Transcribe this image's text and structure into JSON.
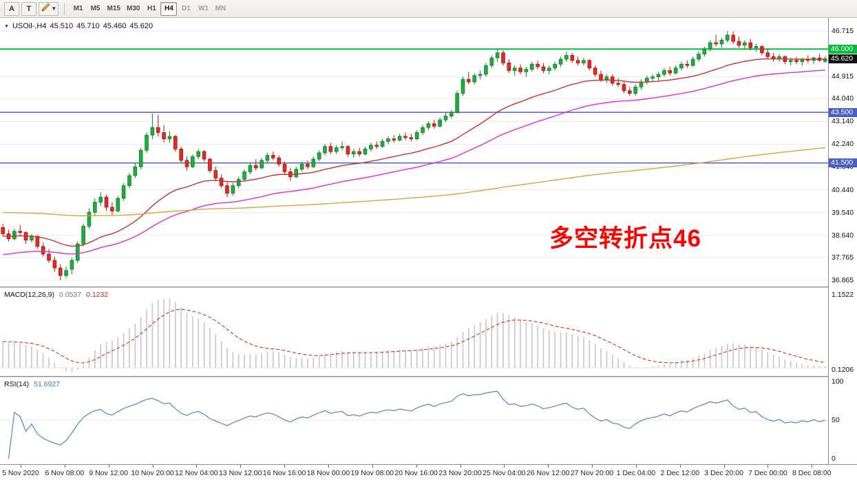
{
  "toolbar": {
    "tool_a_label": "A",
    "tool_t_label": "T",
    "timeframes": [
      "M1",
      "M5",
      "M15",
      "M30",
      "H1",
      "H4",
      "D1",
      "W1",
      "MN"
    ],
    "active_timeframe": "H4",
    "muted_timeframes": [
      "D1",
      "W1",
      "MN"
    ]
  },
  "caption": {
    "arrow": "▼",
    "symbol_period": "USOil-,H4",
    "open": "45.510",
    "high": "45.710",
    "low": "45.460",
    "close": "45.620"
  },
  "chart": {
    "annotation": {
      "text": "多空转折点46",
      "color": "#ff0000"
    },
    "colors": {
      "up": "#1fae3e",
      "up_stroke": "#0f7e2a",
      "down": "#e02b22",
      "down_stroke": "#a9170f",
      "grid": "#e9e9e9"
    },
    "levels": [
      {
        "label": "46.000",
        "value": 46.0,
        "color": "#00bd3a",
        "width": 2
      },
      {
        "label": "43.500",
        "value": 43.5,
        "color": "#4a5dc8",
        "width": 1.5
      },
      {
        "label": "41.500",
        "value": 41.5,
        "color": "#4a5dc8",
        "width": 1.5
      }
    ],
    "current_price": {
      "label": "45.620",
      "value": 45.62,
      "bg": "#101010"
    },
    "price_axis": {
      "ticks": [
        "46.715",
        "44.915",
        "44.040",
        "43.140",
        "42.240",
        "41.340",
        "40.440",
        "39.540",
        "38.640",
        "37.765",
        "36.865"
      ]
    },
    "time_axis": [
      "5 Nov 2020",
      "6 Nov 08:00",
      "9 Nov 12:00",
      "10 Nov 20:00",
      "12 Nov 04:00",
      "13 Nov 12:00",
      "16 Nov 16:00",
      "18 Nov 00:00",
      "19 Nov 08:00",
      "20 Nov 16:00",
      "23 Nov 20:00",
      "25 Nov 04:00",
      "26 Nov 12:00",
      "27 Nov 20:00",
      "1 Dec 04:00",
      "2 Dec 12:00",
      "3 Dec 20:00",
      "7 Dec 00:00",
      "8 Dec 08:00"
    ],
    "candles": [
      [
        38.95,
        39.1,
        38.6,
        38.7
      ],
      [
        38.7,
        38.85,
        38.4,
        38.5
      ],
      [
        38.5,
        38.9,
        38.45,
        38.8
      ],
      [
        38.8,
        39.05,
        38.65,
        38.75
      ],
      [
        38.75,
        38.8,
        38.3,
        38.45
      ],
      [
        38.45,
        38.7,
        38.35,
        38.6
      ],
      [
        38.6,
        38.65,
        38.1,
        38.2
      ],
      [
        38.2,
        38.35,
        37.8,
        37.9
      ],
      [
        37.9,
        38.1,
        37.55,
        37.65
      ],
      [
        37.65,
        37.8,
        37.2,
        37.35
      ],
      [
        37.35,
        37.5,
        36.87,
        37.05
      ],
      [
        37.05,
        37.4,
        36.95,
        37.25
      ],
      [
        37.3,
        37.75,
        37.1,
        37.65
      ],
      [
        37.65,
        38.4,
        37.55,
        38.3
      ],
      [
        38.3,
        39.1,
        38.2,
        39.0
      ],
      [
        39.0,
        39.7,
        38.9,
        39.55
      ],
      [
        39.55,
        40.1,
        39.4,
        39.95
      ],
      [
        39.95,
        40.35,
        39.8,
        40.15
      ],
      [
        40.15,
        40.25,
        39.6,
        39.75
      ],
      [
        39.75,
        39.95,
        39.45,
        39.6
      ],
      [
        39.6,
        40.2,
        39.55,
        40.1
      ],
      [
        40.1,
        40.7,
        40.0,
        40.6
      ],
      [
        40.6,
        41.1,
        40.5,
        41.0
      ],
      [
        41.0,
        41.5,
        40.9,
        41.35
      ],
      [
        41.35,
        42.1,
        41.25,
        42.0
      ],
      [
        42.0,
        42.7,
        41.9,
        42.6
      ],
      [
        42.6,
        43.45,
        42.45,
        42.9
      ],
      [
        42.9,
        43.4,
        42.55,
        42.7
      ],
      [
        42.7,
        43.0,
        42.3,
        42.45
      ],
      [
        42.45,
        42.75,
        42.3,
        42.55
      ],
      [
        42.55,
        42.6,
        41.95,
        42.05
      ],
      [
        42.05,
        42.15,
        41.5,
        41.6
      ],
      [
        41.6,
        41.75,
        41.2,
        41.35
      ],
      [
        41.35,
        41.85,
        41.3,
        41.75
      ],
      [
        41.75,
        42.05,
        41.65,
        41.95
      ],
      [
        41.95,
        42.0,
        41.55,
        41.65
      ],
      [
        41.65,
        41.7,
        41.1,
        41.2
      ],
      [
        41.2,
        41.35,
        40.8,
        40.9
      ],
      [
        40.9,
        41.05,
        40.5,
        40.6
      ],
      [
        40.6,
        40.75,
        40.15,
        40.3
      ],
      [
        40.3,
        40.7,
        40.2,
        40.6
      ],
      [
        40.6,
        40.95,
        40.5,
        40.85
      ],
      [
        40.85,
        41.25,
        40.75,
        41.15
      ],
      [
        41.15,
        41.5,
        41.05,
        41.4
      ],
      [
        41.4,
        41.65,
        41.2,
        41.3
      ],
      [
        41.3,
        41.7,
        41.25,
        41.6
      ],
      [
        41.6,
        41.9,
        41.5,
        41.8
      ],
      [
        41.8,
        41.95,
        41.6,
        41.7
      ],
      [
        41.7,
        41.8,
        41.35,
        41.45
      ],
      [
        41.45,
        41.55,
        41.05,
        41.15
      ],
      [
        41.15,
        41.3,
        40.8,
        40.95
      ],
      [
        40.95,
        41.35,
        40.9,
        41.25
      ],
      [
        41.25,
        41.55,
        41.15,
        41.45
      ],
      [
        41.45,
        41.6,
        41.25,
        41.35
      ],
      [
        41.35,
        41.75,
        41.3,
        41.65
      ],
      [
        41.65,
        42.0,
        41.55,
        41.9
      ],
      [
        41.9,
        42.25,
        41.8,
        42.15
      ],
      [
        42.15,
        42.3,
        41.85,
        41.95
      ],
      [
        41.95,
        42.2,
        41.85,
        42.1
      ],
      [
        42.1,
        42.35,
        42.0,
        42.15
      ],
      [
        42.15,
        42.2,
        41.75,
        41.85
      ],
      [
        41.85,
        42.05,
        41.7,
        41.95
      ],
      [
        41.95,
        42.1,
        41.75,
        41.85
      ],
      [
        41.85,
        42.15,
        41.8,
        42.05
      ],
      [
        42.05,
        42.3,
        41.95,
        42.2
      ],
      [
        42.2,
        42.35,
        42.05,
        42.15
      ],
      [
        42.15,
        42.45,
        42.1,
        42.35
      ],
      [
        42.35,
        42.55,
        42.25,
        42.45
      ],
      [
        42.45,
        42.6,
        42.3,
        42.4
      ],
      [
        42.4,
        42.65,
        42.35,
        42.55
      ],
      [
        42.55,
        42.7,
        42.4,
        42.5
      ],
      [
        42.5,
        42.65,
        42.35,
        42.45
      ],
      [
        42.45,
        42.8,
        42.4,
        42.7
      ],
      [
        42.7,
        43.0,
        42.6,
        42.9
      ],
      [
        42.9,
        43.15,
        42.8,
        43.05
      ],
      [
        43.05,
        43.2,
        42.85,
        42.95
      ],
      [
        42.95,
        43.3,
        42.9,
        43.2
      ],
      [
        43.2,
        43.5,
        43.1,
        43.35
      ],
      [
        43.35,
        43.6,
        43.25,
        43.5
      ],
      [
        43.5,
        44.35,
        43.45,
        44.25
      ],
      [
        44.25,
        44.9,
        44.15,
        44.8
      ],
      [
        44.8,
        45.1,
        44.6,
        44.7
      ],
      [
        44.7,
        45.05,
        44.6,
        44.95
      ],
      [
        44.95,
        45.15,
        44.8,
        45.0
      ],
      [
        45.0,
        45.45,
        44.9,
        45.35
      ],
      [
        45.35,
        45.75,
        45.25,
        45.65
      ],
      [
        45.65,
        46.0,
        45.5,
        45.85
      ],
      [
        45.85,
        45.95,
        45.35,
        45.45
      ],
      [
        45.45,
        45.6,
        45.05,
        45.15
      ],
      [
        45.15,
        45.35,
        44.95,
        45.25
      ],
      [
        45.25,
        45.4,
        45.0,
        45.1
      ],
      [
        45.1,
        45.3,
        44.9,
        45.2
      ],
      [
        45.2,
        45.5,
        45.1,
        45.4
      ],
      [
        45.4,
        45.55,
        45.2,
        45.3
      ],
      [
        45.3,
        45.45,
        45.05,
        45.15
      ],
      [
        45.15,
        45.35,
        45.0,
        45.25
      ],
      [
        45.25,
        45.5,
        45.15,
        45.4
      ],
      [
        45.4,
        45.7,
        45.3,
        45.6
      ],
      [
        45.6,
        45.9,
        45.5,
        45.75
      ],
      [
        45.75,
        45.85,
        45.45,
        45.55
      ],
      [
        45.55,
        45.7,
        45.35,
        45.45
      ],
      [
        45.45,
        45.65,
        45.35,
        45.55
      ],
      [
        45.55,
        45.6,
        45.15,
        45.25
      ],
      [
        45.25,
        45.35,
        44.9,
        45.0
      ],
      [
        45.0,
        45.15,
        44.7,
        44.8
      ],
      [
        44.8,
        45.0,
        44.65,
        44.9
      ],
      [
        44.9,
        45.0,
        44.55,
        44.65
      ],
      [
        44.65,
        44.85,
        44.5,
        44.6
      ],
      [
        44.6,
        44.7,
        44.25,
        44.35
      ],
      [
        44.35,
        44.5,
        44.15,
        44.25
      ],
      [
        44.25,
        44.6,
        44.15,
        44.5
      ],
      [
        44.5,
        44.8,
        44.4,
        44.7
      ],
      [
        44.7,
        44.95,
        44.6,
        44.85
      ],
      [
        44.85,
        45.0,
        44.7,
        44.9
      ],
      [
        44.9,
        45.1,
        44.75,
        45.0
      ],
      [
        45.0,
        45.25,
        44.9,
        45.15
      ],
      [
        45.15,
        45.3,
        44.95,
        45.05
      ],
      [
        45.05,
        45.35,
        45.0,
        45.25
      ],
      [
        45.25,
        45.5,
        45.15,
        45.4
      ],
      [
        45.4,
        45.55,
        45.25,
        45.35
      ],
      [
        45.35,
        45.7,
        45.3,
        45.6
      ],
      [
        45.6,
        45.9,
        45.5,
        45.8
      ],
      [
        45.8,
        46.1,
        45.7,
        46.0
      ],
      [
        46.0,
        46.35,
        45.9,
        46.25
      ],
      [
        46.25,
        46.55,
        46.1,
        46.2
      ],
      [
        46.2,
        46.45,
        46.05,
        46.35
      ],
      [
        46.35,
        46.71,
        46.25,
        46.55
      ],
      [
        46.55,
        46.7,
        46.2,
        46.3
      ],
      [
        46.3,
        46.5,
        46.05,
        46.15
      ],
      [
        46.15,
        46.35,
        46.0,
        46.25
      ],
      [
        46.25,
        46.4,
        45.95,
        46.05
      ],
      [
        46.05,
        46.2,
        45.9,
        46.1
      ],
      [
        46.1,
        46.15,
        45.75,
        45.85
      ],
      [
        45.85,
        46.0,
        45.6,
        45.7
      ],
      [
        45.7,
        45.85,
        45.5,
        45.6
      ],
      [
        45.6,
        45.8,
        45.5,
        45.7
      ],
      [
        45.7,
        45.75,
        45.4,
        45.5
      ],
      [
        45.5,
        45.65,
        45.35,
        45.55
      ],
      [
        45.55,
        45.7,
        45.4,
        45.5
      ],
      [
        45.5,
        45.65,
        45.35,
        45.6
      ],
      [
        45.6,
        45.75,
        45.45,
        45.55
      ],
      [
        45.55,
        45.7,
        45.4,
        45.65
      ],
      [
        45.65,
        45.8,
        45.5,
        45.55
      ],
      [
        45.51,
        45.71,
        45.46,
        45.62
      ]
    ]
  },
  "indicators": {
    "ma": [
      {
        "name": "ma-fast-red",
        "color": "#c93030",
        "alpha": 0.065,
        "seed": 38.6
      },
      {
        "name": "ma-mid-magenta",
        "color": "#dd2cdd",
        "alpha": 0.035,
        "seed": 37.85
      },
      {
        "name": "ma-slow-orange",
        "color": "#d9a43a",
        "alpha": 0.0068,
        "seed": 39.55
      }
    ],
    "macd": {
      "name": "MACD(12,26,9)",
      "macd_value": "0.0537",
      "signal_value": "0.1232",
      "axis_top": "1.1522",
      "axis_bottom": "0.1206",
      "histogram_color": "#c6c6c6",
      "signal_color": "#d62a2a"
    },
    "rsi": {
      "name": "RSI(14)",
      "value": "51.6927",
      "axis": [
        "100",
        "50",
        "0"
      ],
      "color": "#4080b0"
    }
  }
}
